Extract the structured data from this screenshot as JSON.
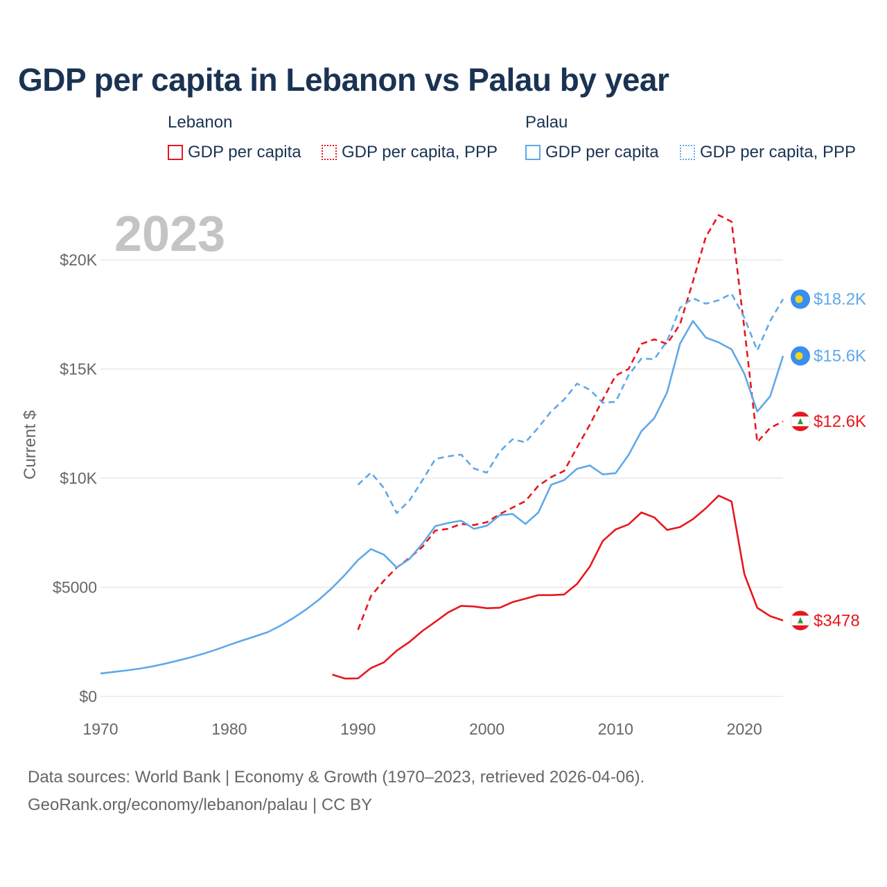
{
  "title": "GDP per capita in Lebanon vs Palau by year",
  "legend": {
    "groups": [
      {
        "name": "Lebanon",
        "items": [
          "GDP per capita",
          "GDP per capita, PPP"
        ]
      },
      {
        "name": "Palau",
        "items": [
          "GDP per capita",
          "GDP per capita, PPP"
        ]
      }
    ]
  },
  "colors": {
    "lebanon": "#e8161d",
    "palau": "#5fa8e8",
    "grid": "#e3e3e3",
    "year_watermark": "#c4c4c4",
    "axis_text": "#666666",
    "title": "#1a3353"
  },
  "source": {
    "line1": "Data sources: World Bank | Economy & Growth (1970–2023, retrieved 2026-04-06).",
    "line2": "GeoRank.org/economy/lebanon/palau | CC BY"
  },
  "chart_data": {
    "type": "line",
    "year_label": "2023",
    "ylabel": "Current $",
    "xlim": [
      1970,
      2023
    ],
    "ylim": [
      0,
      20000
    ],
    "x_ticks": [
      1970,
      1980,
      1990,
      2000,
      2010,
      2020
    ],
    "y_ticks": [
      0,
      5000,
      10000,
      15000,
      20000
    ],
    "y_tick_labels": [
      "$0",
      "$5000",
      "$10K",
      "$15K",
      "$20K"
    ],
    "series": [
      {
        "name": "Lebanon GDP per capita",
        "country": "Lebanon",
        "style": "solid",
        "color": "#e8161d",
        "end_label": "$3478",
        "flag": "lebanon-flag",
        "x": [
          1988,
          1989,
          1990,
          1991,
          1992,
          1993,
          1994,
          1995,
          1996,
          1997,
          1998,
          1999,
          2000,
          2001,
          2002,
          2003,
          2004,
          2005,
          2006,
          2007,
          2008,
          2009,
          2010,
          2011,
          2012,
          2013,
          2014,
          2015,
          2016,
          2017,
          2018,
          2019,
          2020,
          2021,
          2022,
          2023
        ],
        "values": [
          1000,
          820,
          830,
          1300,
          1560,
          2100,
          2500,
          3000,
          3420,
          3850,
          4150,
          4120,
          4040,
          4060,
          4320,
          4480,
          4640,
          4640,
          4670,
          5150,
          5950,
          7120,
          7650,
          7880,
          8430,
          8200,
          7630,
          7760,
          8120,
          8620,
          9200,
          8930,
          5600,
          4060,
          3680,
          3478
        ]
      },
      {
        "name": "Lebanon GDP per capita, PPP",
        "country": "Lebanon",
        "style": "dashed",
        "color": "#e8161d",
        "end_label": "$12.6K",
        "flag": "lebanon-flag",
        "x": [
          1990,
          1991,
          1992,
          1993,
          1994,
          1995,
          1996,
          1997,
          1998,
          1999,
          2000,
          2001,
          2002,
          2003,
          2004,
          2005,
          2006,
          2007,
          2008,
          2009,
          2010,
          2011,
          2012,
          2013,
          2014,
          2015,
          2016,
          2017,
          2018,
          2019,
          2020,
          2021,
          2022,
          2023
        ],
        "values": [
          3050,
          4600,
          5300,
          5900,
          6350,
          6850,
          7600,
          7680,
          7900,
          7850,
          7980,
          8350,
          8650,
          8950,
          9650,
          10050,
          10330,
          11400,
          12450,
          13600,
          14700,
          15000,
          16150,
          16360,
          16150,
          17050,
          19000,
          21050,
          22050,
          21750,
          16850,
          11650,
          12300,
          12600
        ]
      },
      {
        "name": "Palau GDP per capita",
        "country": "Palau",
        "style": "solid",
        "color": "#5fa8e8",
        "end_label": "$15.6K",
        "flag": "palau-flag",
        "x": [
          1970,
          1971,
          1972,
          1973,
          1974,
          1975,
          1976,
          1977,
          1978,
          1979,
          1980,
          1981,
          1982,
          1983,
          1984,
          1985,
          1986,
          1987,
          1988,
          1989,
          1990,
          1991,
          1992,
          1993,
          1994,
          1995,
          1996,
          1997,
          1998,
          1999,
          2000,
          2001,
          2002,
          2003,
          2004,
          2005,
          2006,
          2007,
          2008,
          2009,
          2010,
          2011,
          2012,
          2013,
          2014,
          2015,
          2016,
          2017,
          2018,
          2019,
          2020,
          2021,
          2022,
          2023
        ],
        "values": [
          1050,
          1120,
          1190,
          1270,
          1370,
          1500,
          1640,
          1790,
          1960,
          2150,
          2360,
          2560,
          2750,
          2950,
          3250,
          3600,
          4000,
          4450,
          4980,
          5580,
          6250,
          6750,
          6500,
          5900,
          6300,
          7000,
          7800,
          7950,
          8050,
          7680,
          7820,
          8300,
          8360,
          7900,
          8430,
          9700,
          9910,
          10430,
          10580,
          10170,
          10230,
          11060,
          12150,
          12750,
          13930,
          16160,
          17200,
          16440,
          16220,
          15900,
          14780,
          13050,
          13750,
          15600
        ]
      },
      {
        "name": "Palau GDP per capita, PPP",
        "country": "Palau",
        "style": "dashed",
        "color": "#5fa8e8",
        "end_label": "$18.2K",
        "flag": "palau-flag",
        "x": [
          1990,
          1991,
          1992,
          1993,
          1994,
          1995,
          1996,
          1997,
          1998,
          1999,
          2000,
          2001,
          2002,
          2003,
          2004,
          2005,
          2006,
          2007,
          2008,
          2009,
          2010,
          2011,
          2012,
          2013,
          2014,
          2015,
          2016,
          2017,
          2018,
          2019,
          2020,
          2021,
          2022,
          2023
        ],
        "values": [
          9700,
          10250,
          9550,
          8400,
          8980,
          9900,
          10880,
          11000,
          11080,
          10440,
          10250,
          11220,
          11780,
          11640,
          12320,
          13060,
          13600,
          14330,
          14050,
          13450,
          13500,
          14710,
          15480,
          15450,
          16280,
          17800,
          18240,
          17990,
          18150,
          18450,
          17350,
          15850,
          17200,
          18200
        ]
      }
    ]
  }
}
